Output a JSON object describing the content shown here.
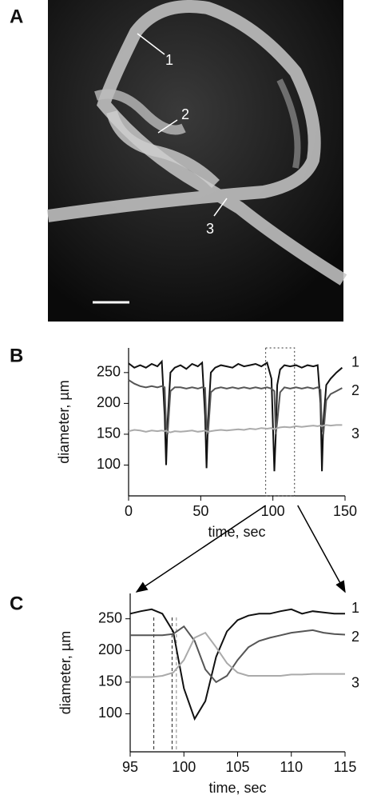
{
  "panel_a": {
    "label": "A",
    "markers": [
      "1",
      "2",
      "3"
    ]
  },
  "chart_data": [
    {
      "type": "line",
      "panel_label": "B",
      "x_label": "time, sec",
      "y_label": "diameter, µm",
      "xlim": [
        0,
        150
      ],
      "xticks": [
        0,
        50,
        100,
        150
      ],
      "ylim": [
        50,
        290
      ],
      "yticks": [
        100,
        150,
        200,
        250
      ],
      "zoom_range": [
        95,
        115
      ],
      "x": [
        0,
        4,
        8,
        12,
        16,
        20,
        23,
        25,
        26,
        27,
        29,
        32,
        36,
        40,
        44,
        48,
        51,
        53,
        54,
        55,
        57,
        60,
        64,
        68,
        72,
        76,
        80,
        84,
        88,
        92,
        96,
        99,
        101,
        102,
        103,
        105,
        108,
        112,
        116,
        120,
        124,
        128,
        131,
        133,
        134,
        135,
        137,
        140,
        144,
        148
      ],
      "series": [
        {
          "name": "1",
          "color": "#111111",
          "values": [
            265,
            258,
            262,
            258,
            264,
            260,
            268,
            180,
            100,
            170,
            250,
            258,
            262,
            256,
            264,
            260,
            266,
            180,
            95,
            170,
            250,
            258,
            262,
            260,
            258,
            264,
            260,
            262,
            264,
            260,
            266,
            240,
            90,
            150,
            230,
            255,
            262,
            260,
            262,
            258,
            262,
            260,
            262,
            200,
            90,
            170,
            230,
            240,
            250,
            258
          ]
        },
        {
          "name": "2",
          "color": "#555555",
          "values": [
            238,
            232,
            228,
            226,
            228,
            226,
            228,
            226,
            160,
            150,
            220,
            226,
            226,
            224,
            226,
            224,
            226,
            225,
            160,
            150,
            218,
            224,
            226,
            224,
            226,
            224,
            226,
            224,
            226,
            224,
            226,
            224,
            220,
            150,
            170,
            218,
            226,
            224,
            226,
            224,
            226,
            224,
            226,
            222,
            160,
            150,
            205,
            215,
            220,
            225
          ]
        },
        {
          "name": "3",
          "color": "#aaaaaa",
          "values": [
            155,
            157,
            156,
            154,
            156,
            155,
            156,
            155,
            156,
            154,
            153,
            155,
            154,
            155,
            156,
            154,
            155,
            156,
            155,
            154,
            155,
            156,
            157,
            156,
            157,
            158,
            157,
            159,
            158,
            160,
            159,
            160,
            158,
            159,
            160,
            161,
            162,
            161,
            163,
            162,
            163,
            164,
            163,
            164,
            163,
            164,
            165,
            164,
            165,
            165
          ]
        }
      ]
    },
    {
      "type": "line",
      "panel_label": "C",
      "x_label": "time, sec",
      "y_label": "diameter, µm",
      "xlim": [
        95,
        115
      ],
      "xticks": [
        95,
        100,
        105,
        110,
        115
      ],
      "ylim": [
        40,
        290
      ],
      "yticks": [
        100,
        150,
        200,
        250
      ],
      "markers": [
        97.2,
        98.9,
        99.3
      ],
      "x": [
        95,
        96,
        97,
        98,
        99,
        100,
        101,
        102,
        103,
        104,
        105,
        106,
        107,
        108,
        109,
        110,
        111,
        112,
        113,
        114,
        115
      ],
      "series": [
        {
          "name": "1",
          "color": "#111111",
          "values": [
            258,
            262,
            265,
            258,
            230,
            140,
            92,
            120,
            190,
            230,
            248,
            255,
            258,
            258,
            262,
            265,
            258,
            262,
            260,
            258,
            258
          ]
        },
        {
          "name": "2",
          "color": "#555555",
          "values": [
            224,
            224,
            224,
            224,
            226,
            238,
            215,
            170,
            150,
            160,
            185,
            205,
            215,
            220,
            224,
            228,
            230,
            232,
            228,
            226,
            225
          ]
        },
        {
          "name": "3",
          "color": "#aaaaaa",
          "values": [
            158,
            158,
            158,
            160,
            165,
            185,
            220,
            228,
            205,
            180,
            165,
            160,
            160,
            160,
            160,
            162,
            162,
            163,
            163,
            163,
            163
          ]
        }
      ]
    }
  ]
}
